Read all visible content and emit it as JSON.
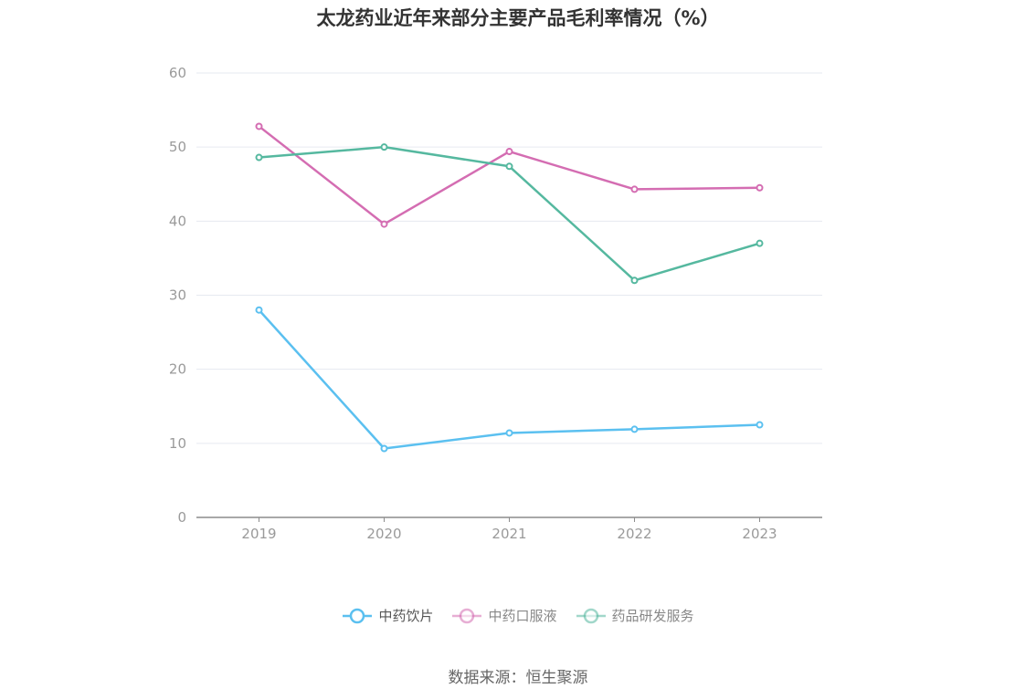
{
  "chart_data": {
    "type": "line",
    "title": "太龙药业近年来部分主要产品毛利率情况（%）",
    "categories": [
      "2019",
      "2020",
      "2021",
      "2022",
      "2023"
    ],
    "ylim": [
      0,
      60
    ],
    "yticks": [
      0,
      10,
      20,
      30,
      40,
      50,
      60
    ],
    "grid": true,
    "legend_position": "bottom",
    "series": [
      {
        "name": "中药饮片",
        "color": "#5bc0f0",
        "values": [
          28.0,
          9.3,
          11.4,
          11.9,
          12.5
        ]
      },
      {
        "name": "中药口服液",
        "color": "#d46db2",
        "values": [
          52.8,
          39.6,
          49.4,
          44.3,
          44.5
        ]
      },
      {
        "name": "药品研发服务",
        "color": "#55b89f",
        "values": [
          48.6,
          50.0,
          47.4,
          32.0,
          37.0
        ]
      }
    ]
  },
  "source": "数据来源：恒生聚源"
}
